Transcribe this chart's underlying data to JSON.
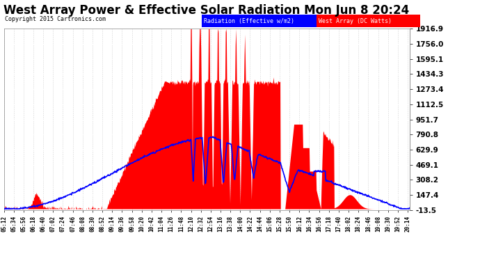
{
  "title": "West Array Power & Effective Solar Radiation Mon Jun 8 20:24",
  "copyright": "Copyright 2015 Cartronics.com",
  "legend_blue": "Radiation (Effective w/m2)",
  "legend_red": "West Array (DC Watts)",
  "yticks": [
    1916.9,
    1756.0,
    1595.1,
    1434.3,
    1273.4,
    1112.5,
    951.7,
    790.8,
    629.9,
    469.1,
    308.2,
    147.4,
    -13.5
  ],
  "ymin": -13.5,
  "ymax": 1916.9,
  "plot_bg": "#ffffff",
  "fig_bg": "#ffffff",
  "grid_color": "#aaaaaa",
  "title_color": "black",
  "title_fontsize": 12
}
